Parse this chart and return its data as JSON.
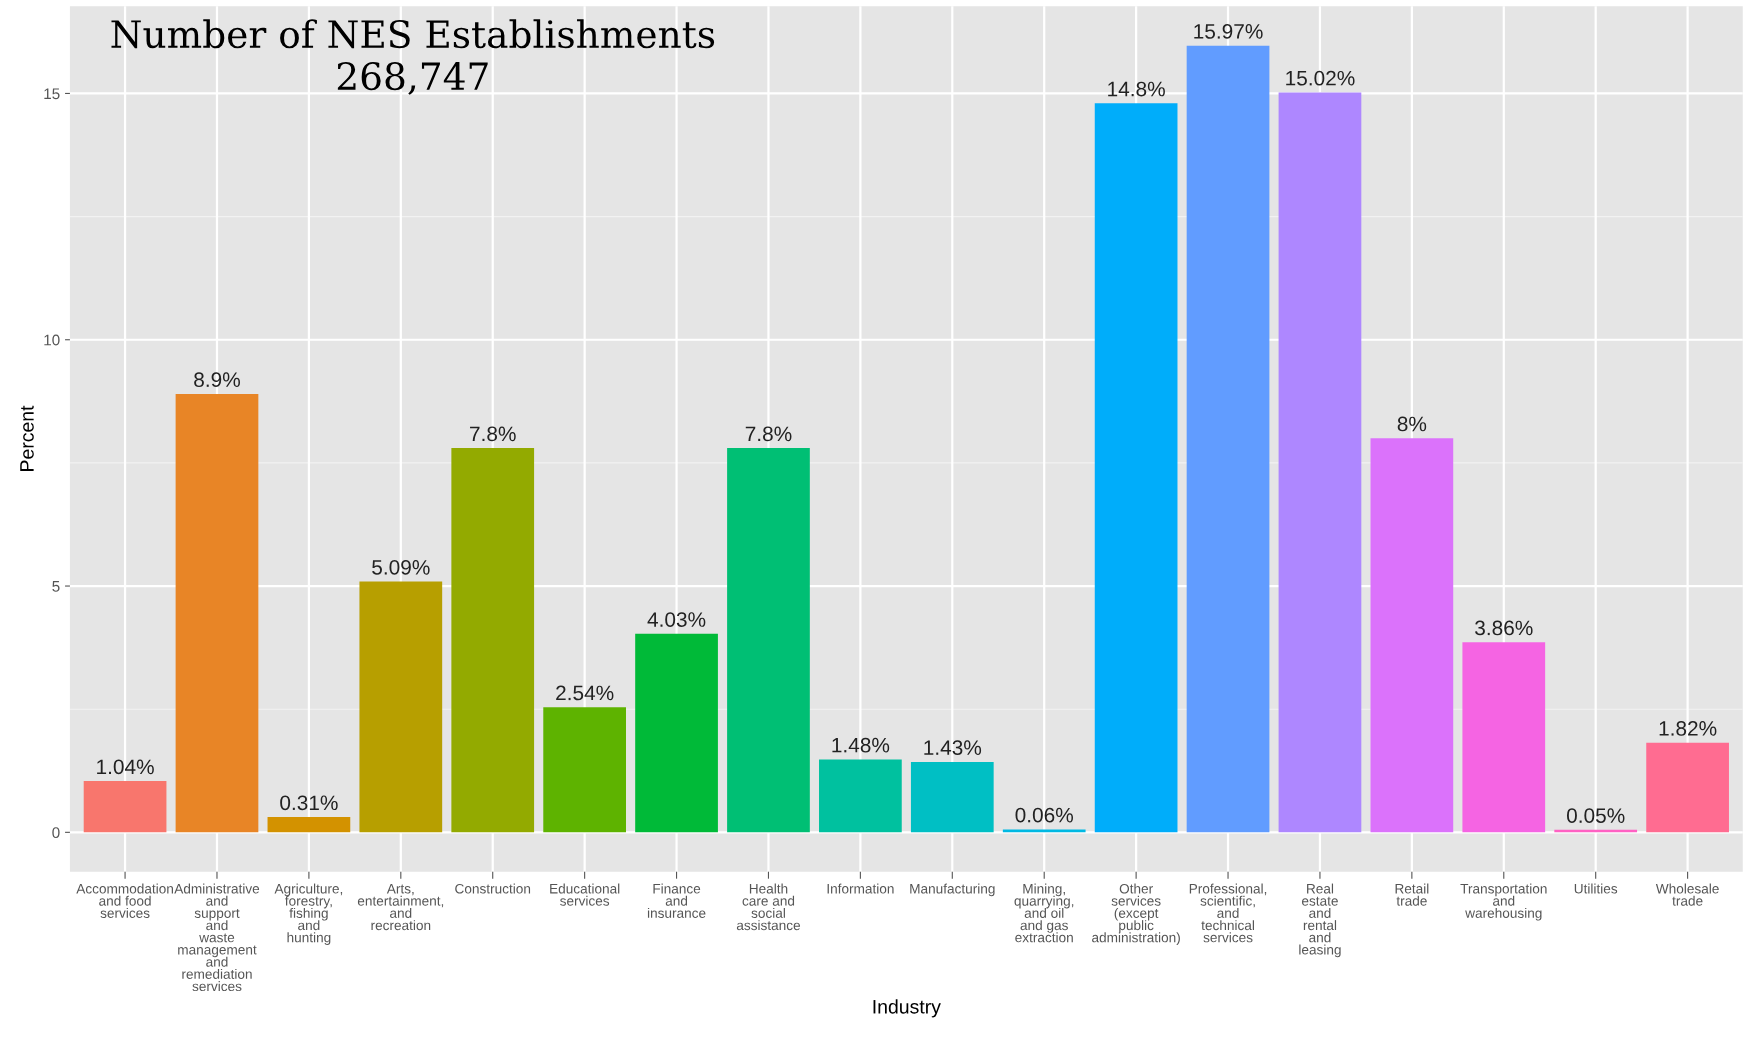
{
  "chart_data": {
    "type": "bar",
    "title": "Number of NES Establishments\n268,747",
    "xlabel": "Industry",
    "ylabel": "Percent",
    "categories": [
      "Accommodation\nand food\nservices",
      "Administrative\nand\nsupport\nand\nwaste\nmanagement\nand\nremediation\nservices",
      "Agriculture,\nforestry,\nfishing\nand\nhunting",
      "Arts,\nentertainment,\nand\nrecreation",
      "Construction",
      "Educational\nservices",
      "Finance\nand\ninsurance",
      "Health\ncare and\nsocial\nassistance",
      "Information",
      "Manufacturing",
      "Mining,\nquarrying,\nand oil\nand gas\nextraction",
      "Other\nservices\n(except\npublic\nadministration)",
      "Professional,\nscientific,\nand\ntechnical\nservices",
      "Real\nestate\nand\nrental\nand\nleasing",
      "Retail\ntrade",
      "Transportation\nand\nwarehousing",
      "Utilities",
      "Wholesale\ntrade"
    ],
    "values": [
      1.04,
      8.9,
      0.31,
      5.09,
      7.8,
      2.54,
      4.03,
      7.8,
      1.48,
      1.43,
      0.06,
      14.8,
      15.97,
      15.02,
      8,
      3.86,
      0.05,
      1.82
    ],
    "value_labels": [
      "1.04%",
      "8.9%",
      "0.31%",
      "5.09%",
      "7.8%",
      "2.54%",
      "4.03%",
      "7.8%",
      "1.48%",
      "1.43%",
      "0.06%",
      "14.8%",
      "15.97%",
      "15.02%",
      "8%",
      "3.86%",
      "0.05%",
      "1.82%"
    ],
    "colors": [
      "#F8766D",
      "#E88526",
      "#D39200",
      "#B79F00",
      "#93AA00",
      "#5EB300",
      "#00BA38",
      "#00BF74",
      "#00C19F",
      "#00BFC4",
      "#00B9E3",
      "#00ADFA",
      "#619CFF",
      "#AE87FF",
      "#DB72FB",
      "#F564E3",
      "#FF61C3",
      "#FF6C91"
    ],
    "ylim": [
      -0.8,
      16.77
    ],
    "yticks": [
      0,
      5,
      10,
      15
    ],
    "grid": true,
    "legend": false
  }
}
